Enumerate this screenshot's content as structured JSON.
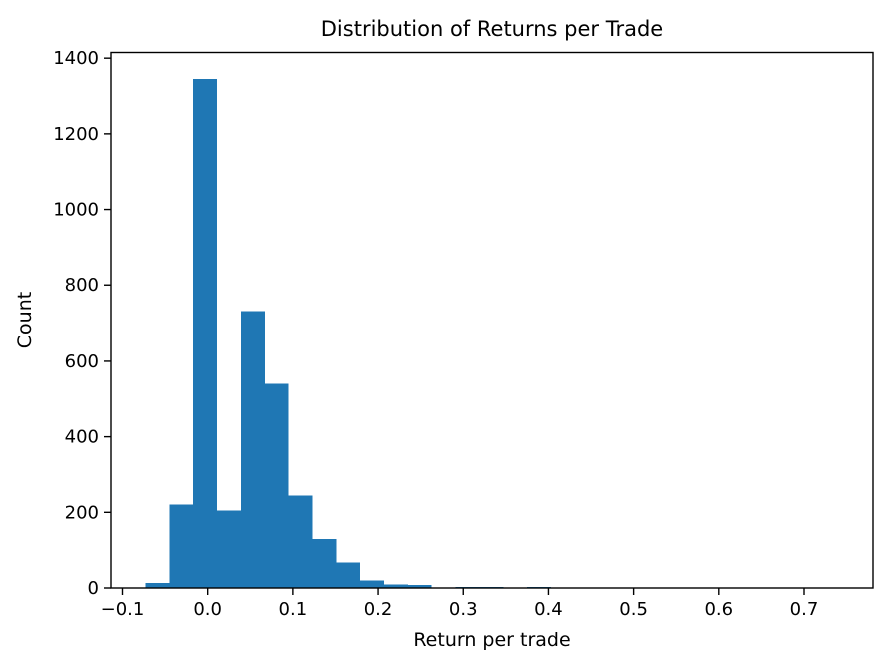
{
  "figure": {
    "background": "#ffffff"
  },
  "chart_data": {
    "type": "bar",
    "subtype": "histogram",
    "title": "Distribution of Returns per Trade",
    "xlabel": "Return per trade",
    "ylabel": "Count",
    "bar_color": "#1f77b4",
    "axis_color": "#000000",
    "grid": false,
    "legend": null,
    "xlim": [
      -0.1135,
      0.781
    ],
    "ylim": [
      0,
      1415
    ],
    "x_tick_values": [
      -0.1,
      0.0,
      0.1,
      0.2,
      0.3,
      0.4,
      0.5,
      0.6,
      0.7
    ],
    "x_tick_labels": [
      "−0.1",
      "0.0",
      "0.1",
      "0.2",
      "0.3",
      "0.4",
      "0.5",
      "0.6",
      "0.7"
    ],
    "y_tick_values": [
      0,
      200,
      400,
      600,
      800,
      1000,
      1200,
      1400
    ],
    "y_tick_labels": [
      "0",
      "200",
      "400",
      "600",
      "800",
      "1000",
      "1200",
      "1400"
    ],
    "bins": {
      "start": -0.073,
      "width": 0.028,
      "counts": [
        13,
        220,
        1345,
        205,
        730,
        540,
        245,
        130,
        68,
        20,
        9,
        8,
        0,
        2,
        2,
        1,
        2,
        0,
        0,
        0,
        0,
        0,
        0,
        0,
        0,
        0,
        0,
        0,
        1
      ]
    }
  }
}
